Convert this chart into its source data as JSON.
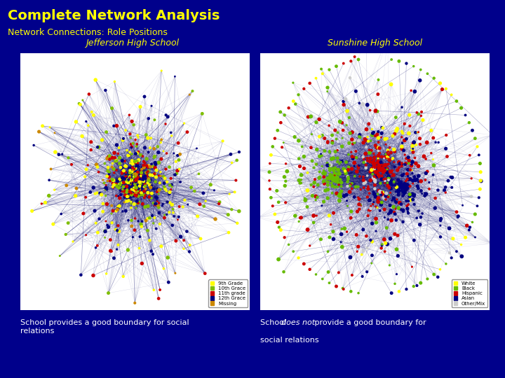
{
  "bg_color": "#00008B",
  "title": "Complete Network Analysis",
  "subtitle": "Network Connections: Role Positions",
  "title_color": "#FFFF00",
  "subtitle_color": "#FFFF00",
  "title_fontsize": 14,
  "subtitle_fontsize": 9,
  "left_panel_title": "Jefferson High School",
  "right_panel_title": "Sunshine High School",
  "panel_title_color": "#FFFF00",
  "panel_title_fontsize": 9,
  "left_caption": "School provides a good boundary for social\nrelations",
  "caption_color": "#FFFFFF",
  "caption_fontsize": 8,
  "panel_bg": "#FFFFFF",
  "node_colors_jefferson": {
    "9th Grade": "#FFFF00",
    "10th Grade": "#7FBF00",
    "11th grade": "#CC0000",
    "12th Grade": "#000080",
    "Missing": "#CC8800"
  },
  "node_colors_sunshine": {
    "White": "#FFFF00",
    "Black": "#66BB00",
    "Hispanic": "#CC0000",
    "Asian": "#000080",
    "Other/Mix": "#CCCCCC"
  },
  "edge_color": "#000080",
  "seed_jefferson": 42,
  "seed_sunshine": 99
}
